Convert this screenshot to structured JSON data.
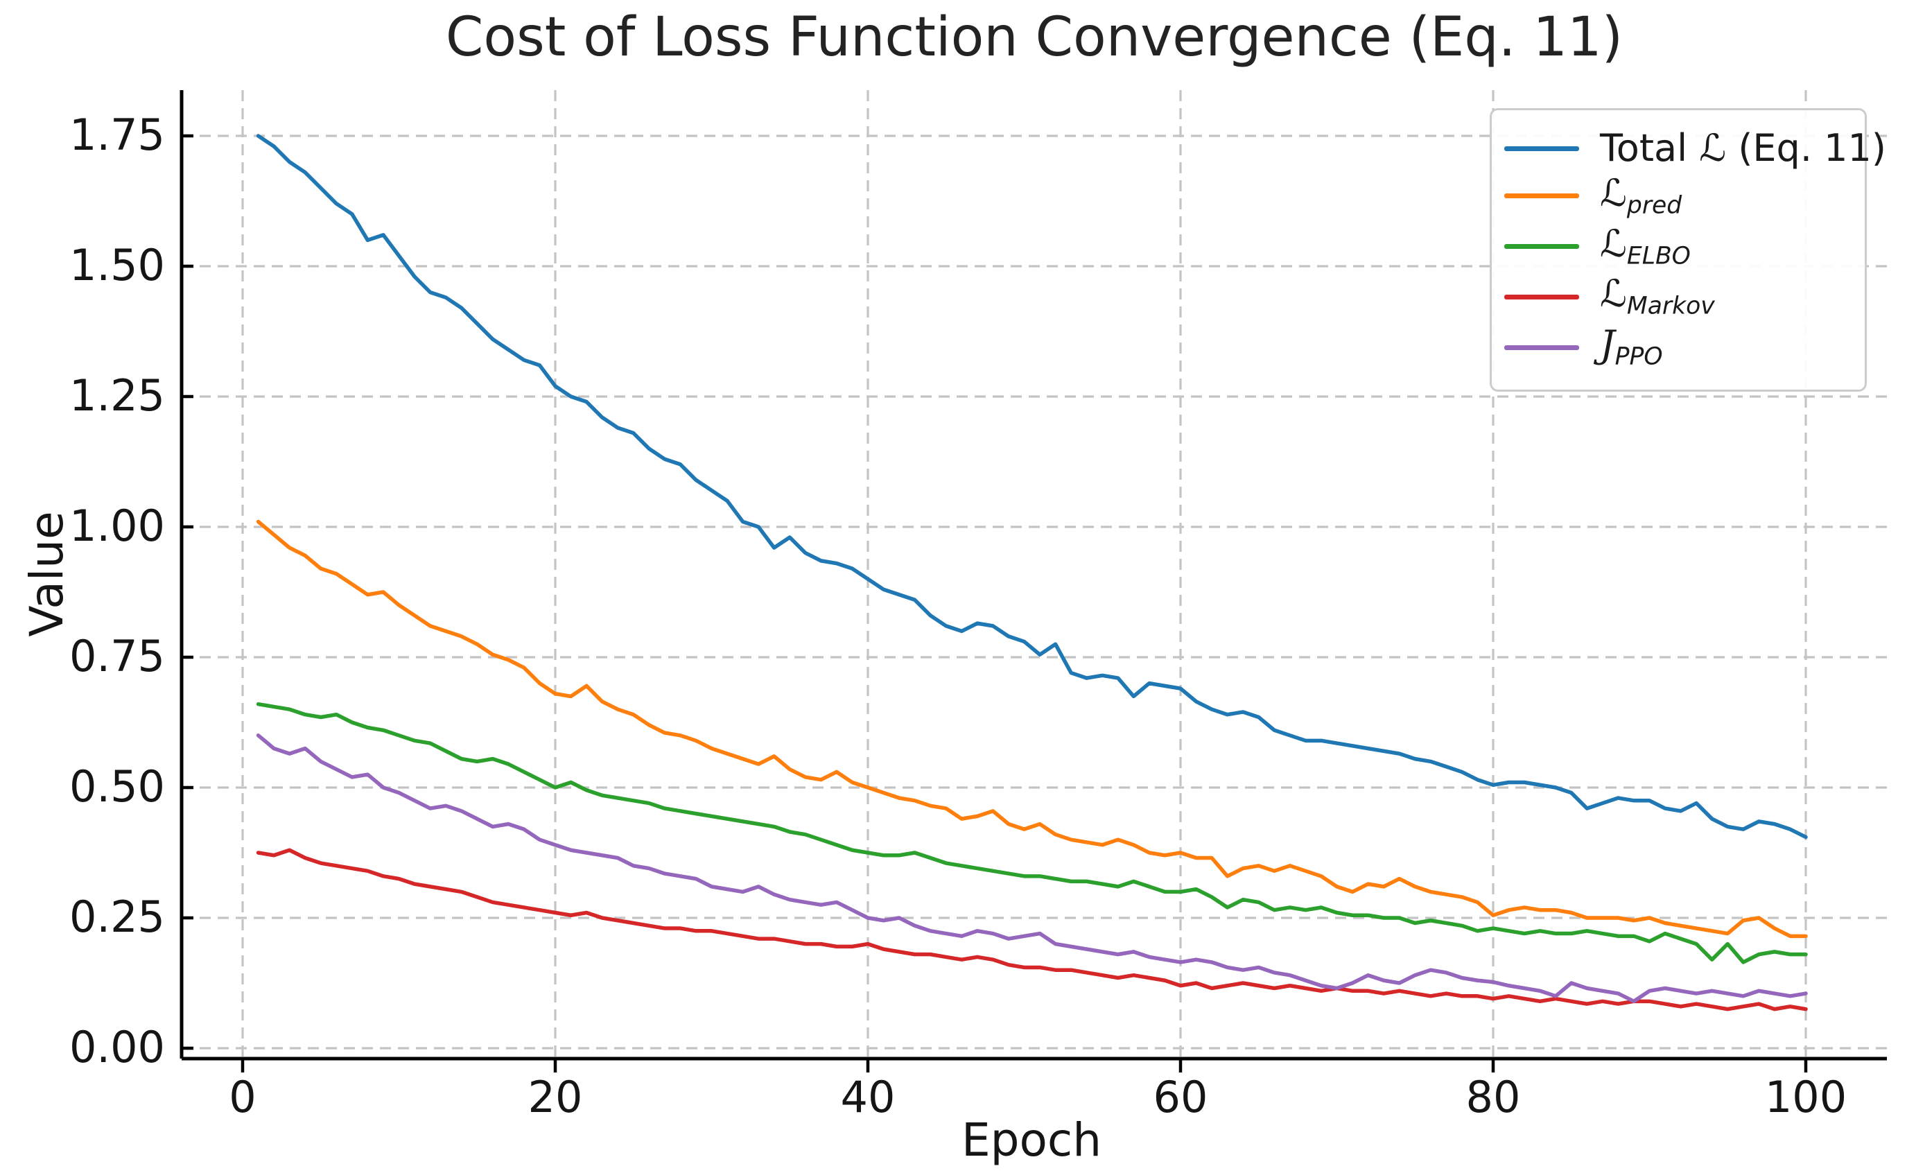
{
  "chart_data": {
    "type": "line",
    "title": "Cost of Loss Function Convergence (Eq. 11)",
    "xlabel": "Epoch",
    "ylabel": "Value",
    "x_ticks": [
      0,
      20,
      40,
      60,
      80,
      100
    ],
    "y_ticks": [
      "0.00",
      "0.25",
      "0.50",
      "0.75",
      "1.00",
      "1.25",
      "1.50",
      "1.75"
    ],
    "xlim": [
      -4,
      105
    ],
    "ylim": [
      -0.02,
      1.84
    ],
    "grid": "dashed",
    "legend_position": "upper right",
    "x_first_epoch": 1,
    "x_last_epoch": 100,
    "x_step": 1,
    "series": [
      {
        "name": "Total ℒ (Eq. 11)",
        "color": "#1f77b4",
        "label_parts": {
          "prefix": "Total ",
          "letter": "ℒ",
          "sub": "",
          "suffix": " (Eq. 11)"
        },
        "values": [
          1.75,
          1.73,
          1.7,
          1.68,
          1.65,
          1.62,
          1.6,
          1.55,
          1.56,
          1.52,
          1.48,
          1.45,
          1.44,
          1.42,
          1.39,
          1.36,
          1.34,
          1.32,
          1.31,
          1.27,
          1.25,
          1.24,
          1.21,
          1.19,
          1.18,
          1.15,
          1.13,
          1.12,
          1.09,
          1.07,
          1.05,
          1.01,
          1.0,
          0.96,
          0.98,
          0.95,
          0.935,
          0.93,
          0.92,
          0.9,
          0.88,
          0.87,
          0.86,
          0.83,
          0.81,
          0.8,
          0.815,
          0.81,
          0.79,
          0.78,
          0.755,
          0.775,
          0.72,
          0.71,
          0.715,
          0.71,
          0.675,
          0.7,
          0.695,
          0.69,
          0.665,
          0.65,
          0.64,
          0.645,
          0.635,
          0.61,
          0.6,
          0.59,
          0.59,
          0.585,
          0.58,
          0.575,
          0.57,
          0.565,
          0.555,
          0.55,
          0.54,
          0.53,
          0.515,
          0.505,
          0.51,
          0.51,
          0.505,
          0.5,
          0.49,
          0.46,
          0.47,
          0.48,
          0.475,
          0.475,
          0.46,
          0.455,
          0.47,
          0.44,
          0.425,
          0.42,
          0.435,
          0.43,
          0.42,
          0.405
        ]
      },
      {
        "name": "ℒpred",
        "color": "#ff7f0e",
        "label_parts": {
          "prefix": "",
          "letter": "ℒ",
          "sub": "pred",
          "suffix": ""
        },
        "values": [
          1.01,
          0.985,
          0.96,
          0.945,
          0.92,
          0.91,
          0.89,
          0.87,
          0.875,
          0.85,
          0.83,
          0.81,
          0.8,
          0.79,
          0.775,
          0.755,
          0.745,
          0.73,
          0.7,
          0.68,
          0.675,
          0.695,
          0.665,
          0.65,
          0.64,
          0.62,
          0.605,
          0.6,
          0.59,
          0.575,
          0.565,
          0.555,
          0.545,
          0.56,
          0.535,
          0.52,
          0.515,
          0.53,
          0.51,
          0.5,
          0.49,
          0.48,
          0.475,
          0.465,
          0.46,
          0.44,
          0.445,
          0.455,
          0.43,
          0.42,
          0.43,
          0.41,
          0.4,
          0.395,
          0.39,
          0.4,
          0.39,
          0.375,
          0.37,
          0.375,
          0.365,
          0.365,
          0.33,
          0.345,
          0.35,
          0.34,
          0.35,
          0.34,
          0.33,
          0.31,
          0.3,
          0.315,
          0.31,
          0.325,
          0.31,
          0.3,
          0.295,
          0.29,
          0.28,
          0.255,
          0.265,
          0.27,
          0.265,
          0.265,
          0.26,
          0.25,
          0.25,
          0.25,
          0.245,
          0.25,
          0.24,
          0.235,
          0.23,
          0.225,
          0.22,
          0.245,
          0.25,
          0.23,
          0.215,
          0.215
        ]
      },
      {
        "name": "ℒELBO",
        "color": "#2ca02c",
        "label_parts": {
          "prefix": "",
          "letter": "ℒ",
          "sub": "ELBO",
          "suffix": ""
        },
        "values": [
          0.66,
          0.655,
          0.65,
          0.64,
          0.635,
          0.64,
          0.625,
          0.615,
          0.61,
          0.6,
          0.59,
          0.585,
          0.57,
          0.555,
          0.55,
          0.555,
          0.545,
          0.53,
          0.515,
          0.5,
          0.51,
          0.495,
          0.485,
          0.48,
          0.475,
          0.47,
          0.46,
          0.455,
          0.45,
          0.445,
          0.44,
          0.435,
          0.43,
          0.425,
          0.415,
          0.41,
          0.4,
          0.39,
          0.38,
          0.375,
          0.37,
          0.37,
          0.375,
          0.365,
          0.355,
          0.35,
          0.345,
          0.34,
          0.335,
          0.33,
          0.33,
          0.325,
          0.32,
          0.32,
          0.315,
          0.31,
          0.32,
          0.31,
          0.3,
          0.3,
          0.305,
          0.29,
          0.27,
          0.285,
          0.28,
          0.265,
          0.27,
          0.265,
          0.27,
          0.26,
          0.255,
          0.255,
          0.25,
          0.25,
          0.24,
          0.245,
          0.24,
          0.235,
          0.225,
          0.23,
          0.225,
          0.22,
          0.225,
          0.22,
          0.22,
          0.225,
          0.22,
          0.215,
          0.215,
          0.205,
          0.22,
          0.21,
          0.2,
          0.17,
          0.2,
          0.165,
          0.18,
          0.185,
          0.18,
          0.18
        ]
      },
      {
        "name": "ℒMarkov",
        "color": "#d62728",
        "label_parts": {
          "prefix": "",
          "letter": "ℒ",
          "sub": "Markov",
          "suffix": ""
        },
        "values": [
          0.375,
          0.37,
          0.38,
          0.365,
          0.355,
          0.35,
          0.345,
          0.34,
          0.33,
          0.325,
          0.315,
          0.31,
          0.305,
          0.3,
          0.29,
          0.28,
          0.275,
          0.27,
          0.265,
          0.26,
          0.255,
          0.26,
          0.25,
          0.245,
          0.24,
          0.235,
          0.23,
          0.23,
          0.225,
          0.225,
          0.22,
          0.215,
          0.21,
          0.21,
          0.205,
          0.2,
          0.2,
          0.195,
          0.195,
          0.2,
          0.19,
          0.185,
          0.18,
          0.18,
          0.175,
          0.17,
          0.175,
          0.17,
          0.16,
          0.155,
          0.155,
          0.15,
          0.15,
          0.145,
          0.14,
          0.135,
          0.14,
          0.135,
          0.13,
          0.12,
          0.125,
          0.115,
          0.12,
          0.125,
          0.12,
          0.115,
          0.12,
          0.115,
          0.11,
          0.115,
          0.11,
          0.11,
          0.105,
          0.11,
          0.105,
          0.1,
          0.105,
          0.1,
          0.1,
          0.095,
          0.1,
          0.095,
          0.09,
          0.095,
          0.09,
          0.085,
          0.09,
          0.085,
          0.09,
          0.09,
          0.085,
          0.08,
          0.085,
          0.08,
          0.075,
          0.08,
          0.085,
          0.075,
          0.08,
          0.075
        ]
      },
      {
        "name": "𝒥PPO",
        "color": "#9467bd",
        "label_parts": {
          "prefix": "",
          "letter": "𝒥",
          "sub": "PPO",
          "suffix": ""
        },
        "values": [
          0.6,
          0.575,
          0.565,
          0.575,
          0.55,
          0.535,
          0.52,
          0.525,
          0.5,
          0.49,
          0.475,
          0.46,
          0.465,
          0.455,
          0.44,
          0.425,
          0.43,
          0.42,
          0.4,
          0.39,
          0.38,
          0.375,
          0.37,
          0.365,
          0.35,
          0.345,
          0.335,
          0.33,
          0.325,
          0.31,
          0.305,
          0.3,
          0.31,
          0.295,
          0.285,
          0.28,
          0.275,
          0.28,
          0.265,
          0.25,
          0.245,
          0.25,
          0.235,
          0.225,
          0.22,
          0.215,
          0.225,
          0.22,
          0.21,
          0.215,
          0.22,
          0.2,
          0.195,
          0.19,
          0.185,
          0.18,
          0.185,
          0.175,
          0.17,
          0.165,
          0.17,
          0.165,
          0.155,
          0.15,
          0.155,
          0.145,
          0.14,
          0.13,
          0.12,
          0.115,
          0.125,
          0.14,
          0.13,
          0.125,
          0.14,
          0.15,
          0.145,
          0.135,
          0.13,
          0.127,
          0.12,
          0.115,
          0.11,
          0.1,
          0.125,
          0.115,
          0.11,
          0.105,
          0.09,
          0.11,
          0.115,
          0.11,
          0.105,
          0.11,
          0.105,
          0.1,
          0.11,
          0.105,
          0.1,
          0.105
        ]
      }
    ]
  }
}
